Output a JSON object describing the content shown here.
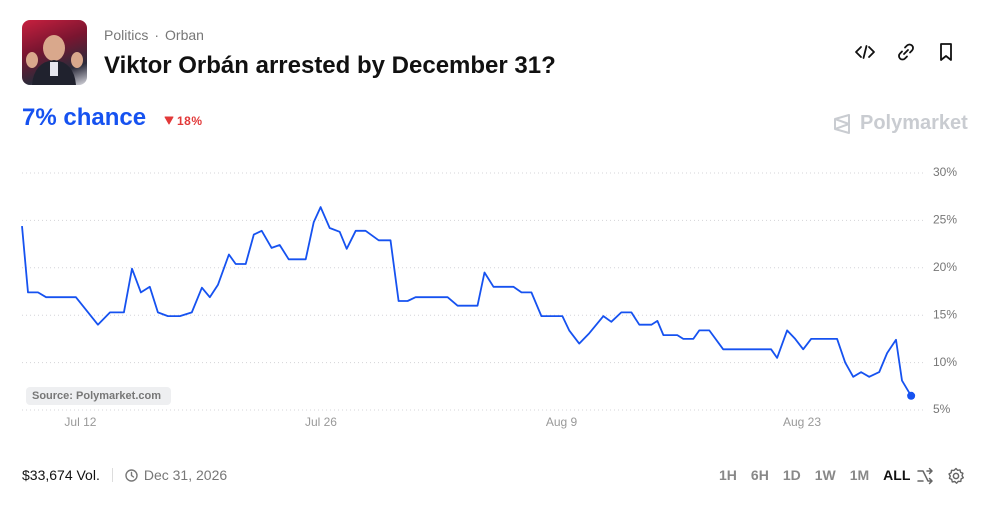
{
  "header": {
    "category": "Politics",
    "subcategory": "Orban",
    "title": "Viktor Orbán arrested by December 31?"
  },
  "odds": {
    "chance": "7% chance",
    "change": "18%"
  },
  "brand": "Polymarket",
  "chart_data": {
    "type": "line",
    "source": "Source: Polymarket.com",
    "color": "#1652f0",
    "x": [
      8.6,
      8.95,
      9.53,
      10.0,
      11.74,
      13.02,
      13.72,
      14.53,
      15.0,
      15.52,
      16.04,
      16.51,
      17.09,
      17.79,
      18.48,
      19.07,
      19.53,
      20.0,
      20.64,
      21.04,
      21.62,
      22.09,
      22.55,
      23.13,
      23.6,
      24.12,
      25.11,
      25.58,
      25.98,
      26.51,
      27.09,
      27.5,
      28.02,
      28.6,
      29.36,
      30.05,
      30.52,
      31.04,
      31.51,
      33.37,
      33.95,
      35.11,
      35.52,
      36.04,
      37.2,
      37.67,
      38.25,
      38.83,
      40.05,
      40.45,
      41.03,
      41.62,
      42.44,
      42.9,
      43.48,
      44.07,
      44.53,
      45.23,
      45.58,
      45.93,
      46.74,
      47.09,
      47.67,
      48.02,
      48.6,
      49.41,
      52.2,
      52.55,
      53.13,
      53.6,
      54.07,
      54.53,
      56.04,
      56.51,
      56.98,
      57.44,
      57.91,
      58.49,
      58.95,
      59.47,
      59.82,
      60.35
    ],
    "values": [
      24.4,
      17.4,
      17.4,
      16.9,
      16.9,
      14.0,
      15.3,
      15.3,
      19.9,
      17.4,
      18.0,
      15.3,
      14.9,
      14.9,
      15.3,
      17.9,
      16.9,
      18.2,
      21.4,
      20.4,
      20.4,
      23.5,
      23.9,
      22.1,
      22.4,
      20.9,
      20.9,
      24.8,
      26.4,
      24.2,
      23.8,
      22.0,
      23.9,
      23.9,
      22.9,
      22.9,
      16.5,
      16.5,
      16.9,
      16.9,
      16.0,
      16.0,
      19.5,
      18.0,
      18.0,
      17.4,
      17.4,
      14.9,
      14.9,
      13.4,
      12.0,
      13.1,
      14.9,
      14.3,
      15.3,
      15.3,
      14.0,
      14.0,
      14.4,
      12.9,
      12.9,
      12.5,
      12.5,
      13.4,
      13.4,
      11.4,
      11.4,
      10.5,
      13.4,
      12.5,
      11.4,
      12.5,
      12.5,
      10.0,
      8.5,
      9.0,
      8.5,
      9.0,
      11.0,
      12.4,
      8.1,
      6.5
    ],
    "xlim": [
      8.6,
      60.4
    ],
    "ylim": [
      5,
      30
    ],
    "xticks": [
      {
        "value": 12,
        "label": "Jul 12"
      },
      {
        "value": 26,
        "label": "Jul 26"
      },
      {
        "value": 40,
        "label": "Aug 9"
      },
      {
        "value": 54,
        "label": "Aug 23"
      }
    ],
    "yticks": [
      {
        "value": 30,
        "label": "30%"
      },
      {
        "value": 25,
        "label": "25%"
      },
      {
        "value": 20,
        "label": "20%"
      },
      {
        "value": 15,
        "label": "15%"
      },
      {
        "value": 10,
        "label": "10%"
      },
      {
        "value": 5,
        "label": "5%"
      }
    ],
    "grid": true
  },
  "footer": {
    "volume": "$33,674 Vol.",
    "end_date": "Dec 31, 2026",
    "ranges": [
      "1H",
      "6H",
      "1D",
      "1W",
      "1M",
      "ALL"
    ]
  }
}
